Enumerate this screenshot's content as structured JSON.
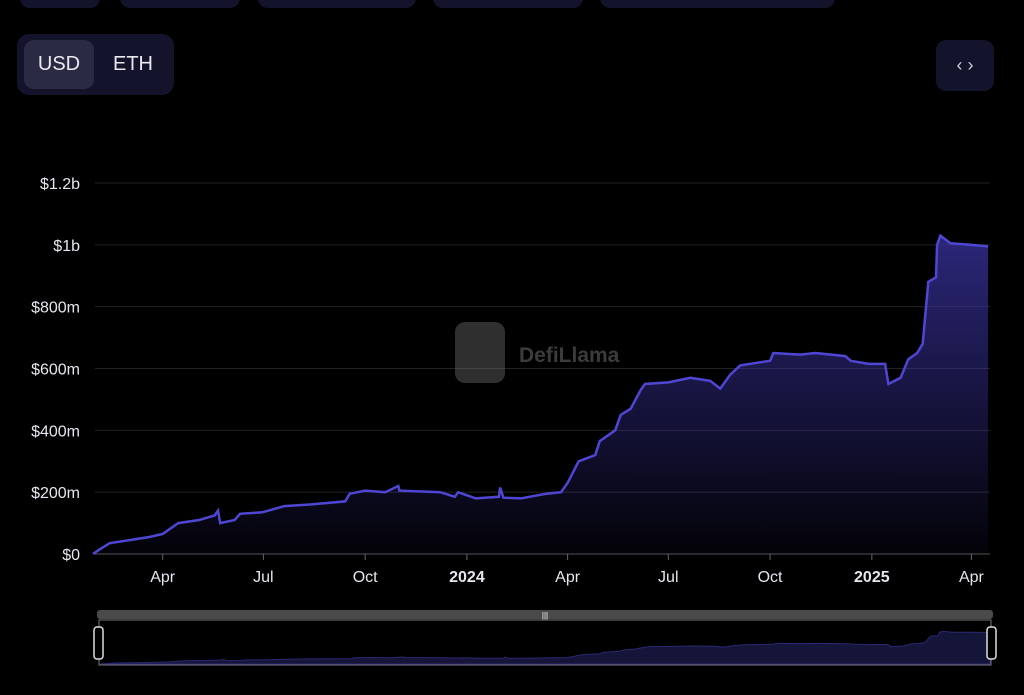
{
  "toolbar": {
    "currency_options": [
      "USD",
      "ETH"
    ],
    "selected_currency": "USD",
    "embed_icon": "code-brackets-icon"
  },
  "watermark": {
    "text": "DefiLlama"
  },
  "colors": {
    "line": "#4f46d4",
    "area_top": "#3a33a0",
    "background": "#000000"
  },
  "chart_data": {
    "type": "area",
    "title": "",
    "xlabel": "",
    "ylabel": "",
    "ylim": [
      0,
      1200
    ],
    "y_unit": "millions USD",
    "grid": true,
    "xlim": [
      "2023-01-28",
      "2025-04-16"
    ],
    "y_ticks": [
      {
        "v": 0,
        "label": "$0"
      },
      {
        "v": 200,
        "label": "$200m"
      },
      {
        "v": 400,
        "label": "$400m"
      },
      {
        "v": 600,
        "label": "$600m"
      },
      {
        "v": 800,
        "label": "$800m"
      },
      {
        "v": 1000,
        "label": "$1b"
      },
      {
        "v": 1200,
        "label": "$1.2b"
      }
    ],
    "x_ticks": [
      {
        "d": "2023-04-01",
        "label": "Apr"
      },
      {
        "d": "2023-07-01",
        "label": "Jul"
      },
      {
        "d": "2023-10-01",
        "label": "Oct"
      },
      {
        "d": "2024-01-01",
        "label": "2024",
        "bold": true
      },
      {
        "d": "2024-04-01",
        "label": "Apr"
      },
      {
        "d": "2024-07-01",
        "label": "Jul"
      },
      {
        "d": "2024-10-01",
        "label": "Oct"
      },
      {
        "d": "2025-01-01",
        "label": "2025",
        "bold": true
      },
      {
        "d": "2025-04-01",
        "label": "Apr"
      }
    ],
    "points": [
      [
        "2023-01-28",
        0
      ],
      [
        "2023-02-03",
        15
      ],
      [
        "2023-02-12",
        35
      ],
      [
        "2023-03-02",
        45
      ],
      [
        "2023-03-20",
        55
      ],
      [
        "2023-04-01",
        65
      ],
      [
        "2023-04-15",
        100
      ],
      [
        "2023-05-04",
        110
      ],
      [
        "2023-05-18",
        125
      ],
      [
        "2023-05-21",
        140
      ],
      [
        "2023-05-23",
        100
      ],
      [
        "2023-06-05",
        110
      ],
      [
        "2023-06-10",
        130
      ],
      [
        "2023-06-30",
        135
      ],
      [
        "2023-07-20",
        155
      ],
      [
        "2023-08-12",
        160
      ],
      [
        "2023-09-13",
        170
      ],
      [
        "2023-09-17",
        195
      ],
      [
        "2023-10-01",
        205
      ],
      [
        "2023-10-19",
        200
      ],
      [
        "2023-10-31",
        220
      ],
      [
        "2023-11-01",
        205
      ],
      [
        "2023-12-08",
        200
      ],
      [
        "2023-12-21",
        185
      ],
      [
        "2023-12-24",
        200
      ],
      [
        "2024-01-01",
        190
      ],
      [
        "2024-01-09",
        180
      ],
      [
        "2024-01-30",
        185
      ],
      [
        "2024-01-31",
        215
      ],
      [
        "2024-02-03",
        182
      ],
      [
        "2024-02-19",
        180
      ],
      [
        "2024-03-13",
        195
      ],
      [
        "2024-03-26",
        200
      ],
      [
        "2024-04-01",
        230
      ],
      [
        "2024-04-11",
        300
      ],
      [
        "2024-04-26",
        320
      ],
      [
        "2024-04-30",
        365
      ],
      [
        "2024-05-14",
        400
      ],
      [
        "2024-05-19",
        450
      ],
      [
        "2024-05-28",
        470
      ],
      [
        "2024-06-06",
        530
      ],
      [
        "2024-06-10",
        550
      ],
      [
        "2024-07-01",
        555
      ],
      [
        "2024-07-21",
        570
      ],
      [
        "2024-08-08",
        560
      ],
      [
        "2024-08-17",
        535
      ],
      [
        "2024-08-26",
        580
      ],
      [
        "2024-09-04",
        610
      ],
      [
        "2024-10-01",
        625
      ],
      [
        "2024-10-04",
        650
      ],
      [
        "2024-10-28",
        645
      ],
      [
        "2024-11-11",
        650
      ],
      [
        "2024-12-08",
        640
      ],
      [
        "2024-12-13",
        625
      ],
      [
        "2024-12-29",
        615
      ],
      [
        "2025-01-13",
        615
      ],
      [
        "2025-01-16",
        550
      ],
      [
        "2025-01-27",
        570
      ],
      [
        "2025-02-03",
        630
      ],
      [
        "2025-02-11",
        650
      ],
      [
        "2025-02-16",
        680
      ],
      [
        "2025-02-21",
        880
      ],
      [
        "2025-02-28",
        895
      ],
      [
        "2025-03-01",
        1000
      ],
      [
        "2025-03-04",
        1030
      ],
      [
        "2025-03-13",
        1005
      ],
      [
        "2025-03-31",
        1000
      ],
      [
        "2025-04-16",
        995
      ]
    ]
  }
}
